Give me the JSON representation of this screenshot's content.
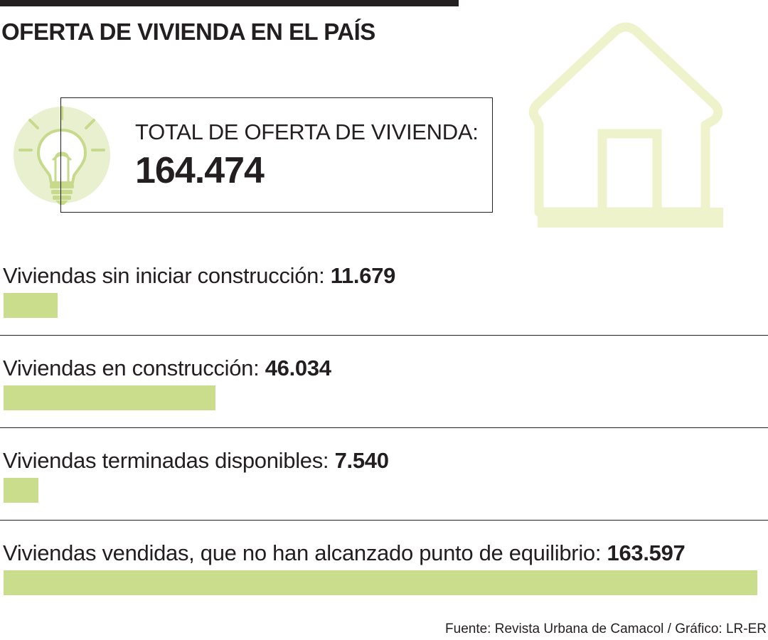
{
  "title": "OFERTA DE VIVIENDA EN EL PAÍS",
  "total": {
    "label": "TOTAL DE OFERTA DE VIVIENDA:",
    "value": "164.474"
  },
  "colors": {
    "bar": "#c9dd8c",
    "icon_light": "#eef3cc",
    "icon_circle": "#e9f0cf",
    "icon_line": "#c7da8b",
    "text": "#231f20"
  },
  "icons": {
    "bulb": "light-bulb-icon",
    "house": "house-icon"
  },
  "chart_data": {
    "type": "bar",
    "orientation": "horizontal",
    "categories": [
      "Viviendas sin iniciar construcción:",
      "Viviendas en construcción:",
      "Viviendas terminadas disponibles:",
      "Viviendas vendidas, que no han alcanzado punto de equilibrio:"
    ],
    "values": [
      11679,
      46034,
      7540,
      163597
    ],
    "value_labels": [
      "11.679",
      "46.034",
      "7.540",
      "163.597"
    ],
    "xlim": [
      0,
      163597
    ],
    "grid": false,
    "legend": "none"
  },
  "source": "Fuente: Revista Urbana de Camacol / Gráfico: LR-ER"
}
